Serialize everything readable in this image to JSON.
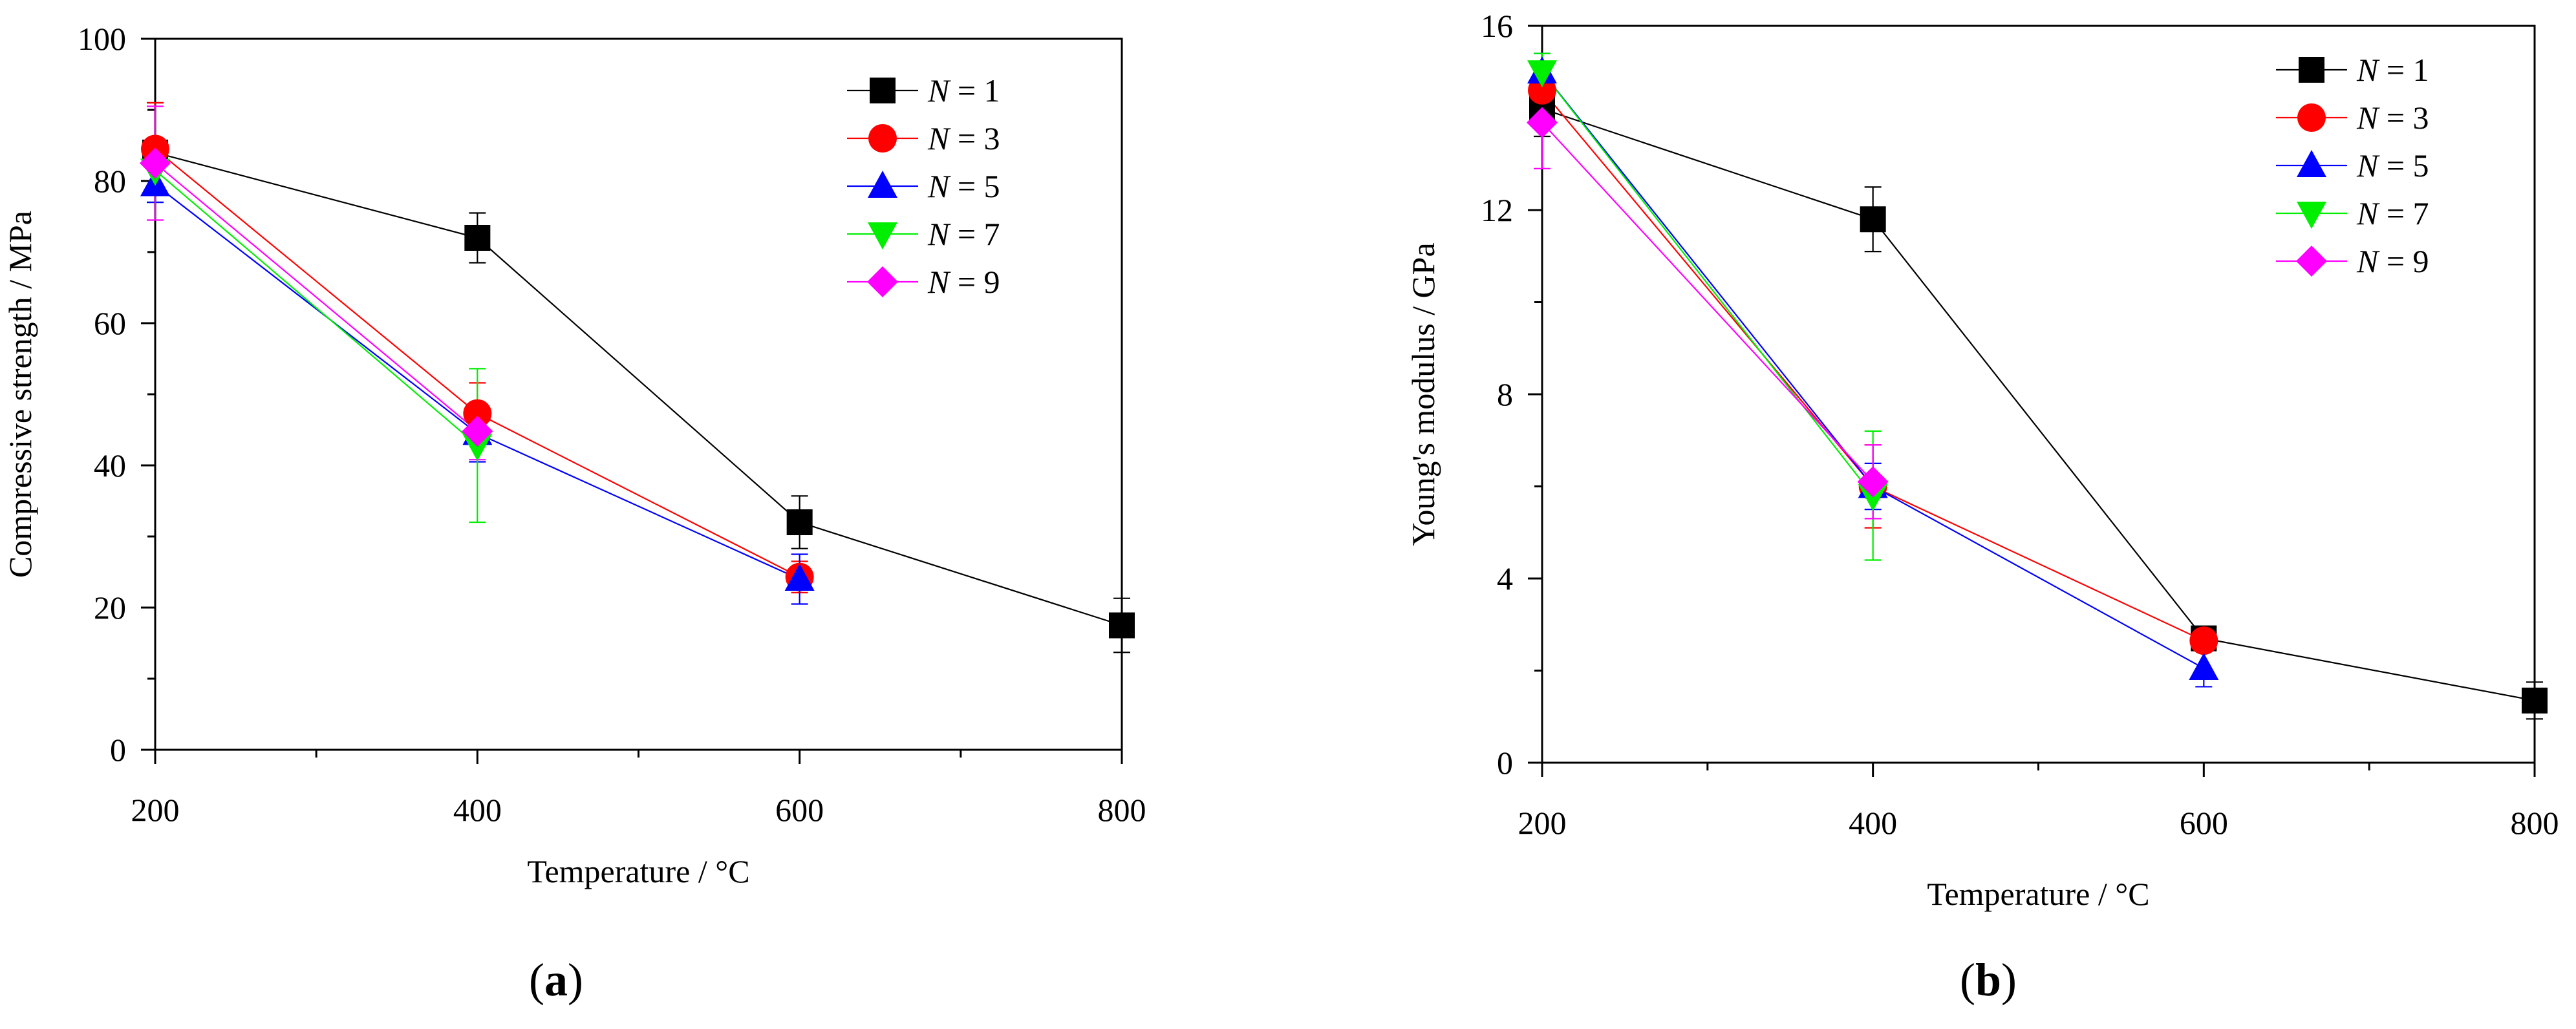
{
  "chart_data": [
    {
      "type": "line",
      "panel_label": "a",
      "xlabel": "Temperature / °C",
      "ylabel": "Compressive strength / MPa",
      "xlim": [
        200,
        800
      ],
      "ylim": [
        0,
        100
      ],
      "xticks": [
        200,
        400,
        600,
        800
      ],
      "yticks": [
        0,
        20,
        40,
        60,
        80,
        100
      ],
      "legend_position": "top-right",
      "series": [
        {
          "name": "N = 1",
          "color": "#000000",
          "marker": "square",
          "x": [
            200,
            400,
            600,
            800
          ],
          "values": [
            84,
            72,
            32,
            17.5
          ],
          "errors": [
            7,
            3.5,
            3.7,
            3.8
          ]
        },
        {
          "name": "N = 3",
          "color": "#ff0000",
          "marker": "circle",
          "x": [
            200,
            400,
            600
          ],
          "values": [
            84.5,
            47.3,
            24.3
          ],
          "errors": [
            6.5,
            4.3,
            2.2
          ]
        },
        {
          "name": "N = 5",
          "color": "#0000ff",
          "marker": "triangle-up",
          "x": [
            200,
            400,
            600
          ],
          "values": [
            79.5,
            44.5,
            24
          ],
          "errors": [
            2.5,
            4,
            3.5
          ]
        },
        {
          "name": "N = 7",
          "color": "#00ee00",
          "marker": "triangle-down",
          "x": [
            200,
            400
          ],
          "values": [
            81.5,
            42.8
          ],
          "errors": [
            3.5,
            10.8
          ]
        },
        {
          "name": "N = 9",
          "color": "#ff00ff",
          "marker": "diamond",
          "x": [
            200,
            400
          ],
          "values": [
            82.5,
            44.8
          ],
          "errors": [
            8,
            4
          ]
        }
      ]
    },
    {
      "type": "line",
      "panel_label": "b",
      "xlabel": "Temperature / °C",
      "ylabel": "Young's modulus / GPa",
      "xlim": [
        200,
        800
      ],
      "ylim": [
        0,
        16
      ],
      "xticks": [
        200,
        400,
        600,
        800
      ],
      "yticks": [
        0,
        4,
        8,
        12,
        16
      ],
      "legend_position": "top-right",
      "series": [
        {
          "name": "N = 1",
          "color": "#000000",
          "marker": "square",
          "x": [
            200,
            400,
            600,
            800
          ],
          "values": [
            14.2,
            11.8,
            2.7,
            1.35
          ],
          "errors": [
            0.6,
            0.7,
            0.2,
            0.4
          ]
        },
        {
          "name": "N = 3",
          "color": "#ff0000",
          "marker": "circle",
          "x": [
            200,
            400,
            600
          ],
          "values": [
            14.6,
            6.0,
            2.65
          ],
          "errors": [
            0.6,
            0.9,
            0.2
          ]
        },
        {
          "name": "N = 5",
          "color": "#0000ff",
          "marker": "triangle-up",
          "x": [
            200,
            400,
            600
          ],
          "values": [
            15.0,
            6.0,
            2.05
          ],
          "errors": [
            0.4,
            0.5,
            0.4
          ]
        },
        {
          "name": "N = 7",
          "color": "#00ee00",
          "marker": "triangle-down",
          "x": [
            200,
            400
          ],
          "values": [
            15.0,
            5.8
          ],
          "errors": [
            0.4,
            1.4
          ]
        },
        {
          "name": "N = 9",
          "color": "#ff00ff",
          "marker": "diamond",
          "x": [
            200,
            400
          ],
          "values": [
            13.9,
            6.1
          ],
          "errors": [
            1.0,
            0.8
          ]
        }
      ]
    }
  ]
}
